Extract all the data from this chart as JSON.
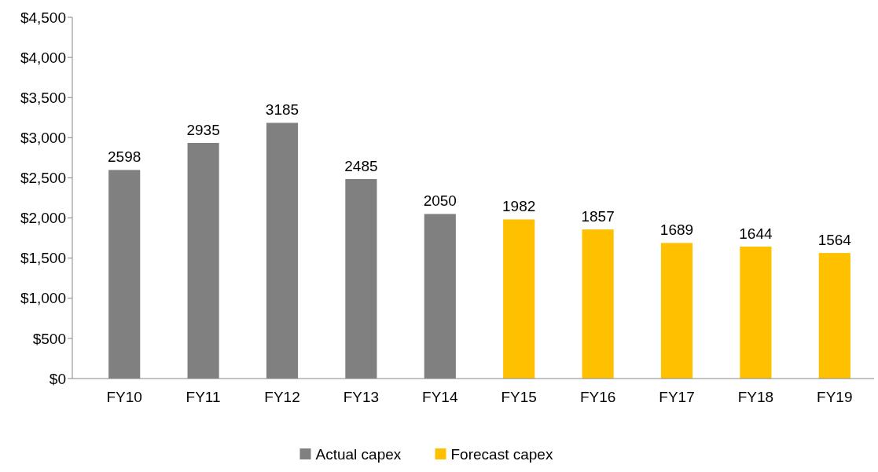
{
  "chart_data": {
    "type": "bar",
    "stacked": true,
    "categories": [
      "FY10",
      "FY11",
      "FY12",
      "FY13",
      "FY14",
      "FY15",
      "FY16",
      "FY17",
      "FY18",
      "FY19"
    ],
    "series": [
      {
        "name": "Actual capex",
        "color": "#808080",
        "values": [
          2598,
          2935,
          3185,
          2485,
          2050,
          null,
          null,
          null,
          null,
          null
        ]
      },
      {
        "name": "Forecast capex",
        "color": "#ffc000",
        "values": [
          null,
          null,
          null,
          null,
          null,
          1982,
          1857,
          1689,
          1644,
          1564
        ]
      }
    ],
    "ylim": [
      0,
      4500
    ],
    "yticks": [
      {
        "value": 0,
        "label": "$0"
      },
      {
        "value": 500,
        "label": "$500"
      },
      {
        "value": 1000,
        "label": "$1,000"
      },
      {
        "value": 1500,
        "label": "$1,500"
      },
      {
        "value": 2000,
        "label": "$2,000"
      },
      {
        "value": 2500,
        "label": "$2,500"
      },
      {
        "value": 3000,
        "label": "$3,000"
      },
      {
        "value": 3500,
        "label": "$3,500"
      },
      {
        "value": 4000,
        "label": "$4,000"
      },
      {
        "value": 4500,
        "label": "$4,500"
      }
    ],
    "data_labels": true,
    "grid": false,
    "legend": "bottom"
  }
}
